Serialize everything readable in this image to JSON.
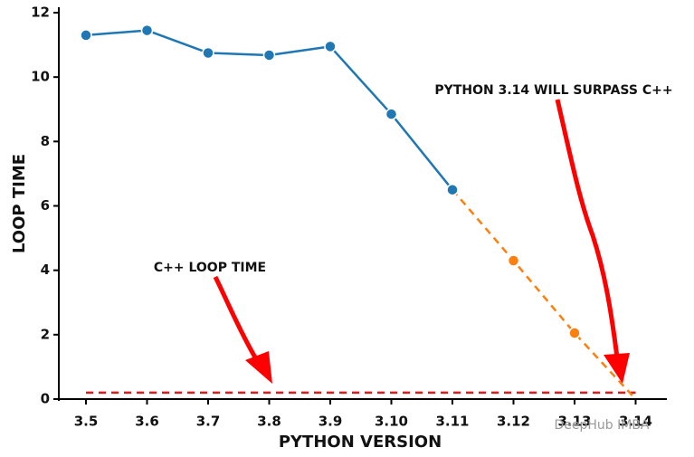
{
  "chart_data": {
    "type": "line",
    "x_label": "PYTHON VERSION",
    "y_label": "LOOP TIME",
    "categories": [
      "3.5",
      "3.6",
      "3.7",
      "3.8",
      "3.9",
      "3.10",
      "3.11",
      "3.12",
      "3.13",
      "3.14"
    ],
    "series": [
      {
        "color": "#1f77b4",
        "style": "solid",
        "values": [
          11.3,
          11.45,
          10.75,
          10.68,
          10.95,
          8.85,
          6.5,
          null,
          null,
          null
        ]
      },
      {
        "color": "#ff7f0e",
        "style": "dashed",
        "values": [
          null,
          null,
          null,
          null,
          null,
          null,
          6.5,
          4.3,
          2.05,
          0
        ]
      },
      {
        "color": "#e31a1c",
        "style": "dashed",
        "values": [
          0.2,
          0.2,
          0.2,
          0.2,
          0.2,
          0.2,
          0.2,
          0.2,
          0.2,
          0.2
        ]
      }
    ],
    "ylim": [
      0,
      12
    ],
    "yticks": [
      0,
      2,
      4,
      6,
      8,
      10,
      12
    ],
    "annotations": [
      "PYTHON 3.14 WILL SURPASS C++",
      "C++ LOOP TIME"
    ],
    "watermark": "DeepHub IMBA"
  }
}
